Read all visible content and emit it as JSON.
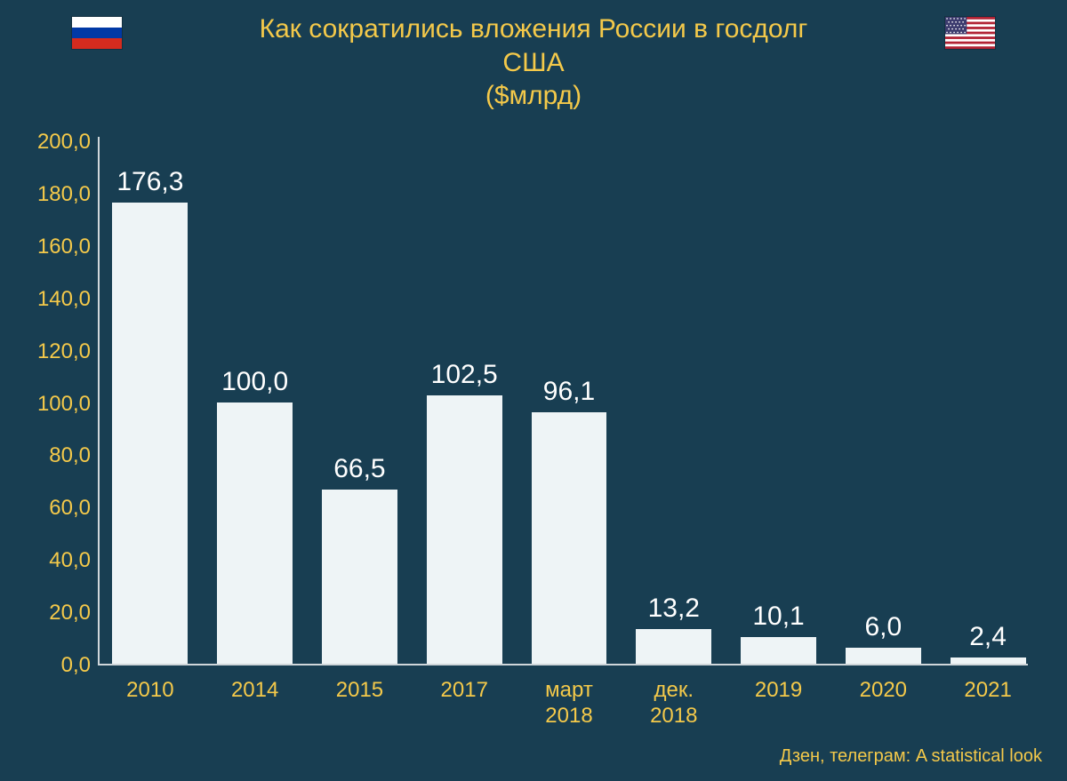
{
  "chart": {
    "type": "bar",
    "background_color": "#183e52",
    "title": {
      "text": "Как сократились вложения России в госдолг\nСША\n($млрд)",
      "color": "#f4c94a",
      "fontsize": 30,
      "weight": "normal"
    },
    "flags": {
      "russia": {
        "stripes": [
          "#ffffff",
          "#0039a6",
          "#d52b1e"
        ]
      },
      "usa": {
        "stripe_red": "#b22234",
        "stripe_white": "#ffffff",
        "canton": "#3c3b6e",
        "star": "#ffffff"
      }
    },
    "axis_color": "#cfd6da",
    "y": {
      "min": 0,
      "max": 200,
      "tick_step": 20,
      "tick_labels": [
        "0,0",
        "20,0",
        "40,0",
        "60,0",
        "80,0",
        "100,0",
        "120,0",
        "140,0",
        "160,0",
        "180,0",
        "200,0"
      ],
      "label_color": "#f4c94a",
      "label_fontsize": 24
    },
    "x": {
      "label_color": "#f4c94a",
      "label_fontsize": 24
    },
    "bars": {
      "fill": "#eef4f6",
      "width_ratio": 0.72,
      "value_label_color": "#ffffff",
      "value_label_fontsize": 30
    },
    "data": [
      {
        "category": "2010",
        "value": 176.3,
        "label": "176,3"
      },
      {
        "category": "2014",
        "value": 100.0,
        "label": "100,0"
      },
      {
        "category": "2015",
        "value": 66.5,
        "label": "66,5"
      },
      {
        "category": "2017",
        "value": 102.5,
        "label": "102,5"
      },
      {
        "category": "март\n2018",
        "value": 96.1,
        "label": "96,1"
      },
      {
        "category": "дек.\n2018",
        "value": 13.2,
        "label": "13,2"
      },
      {
        "category": "2019",
        "value": 10.1,
        "label": "10,1"
      },
      {
        "category": "2020",
        "value": 6.0,
        "label": "6,0"
      },
      {
        "category": "2021",
        "value": 2.4,
        "label": "2,4"
      }
    ],
    "credit": {
      "text": "Дзен, телеграм: A statistical look",
      "color": "#f4c94a",
      "fontsize": 20
    }
  }
}
